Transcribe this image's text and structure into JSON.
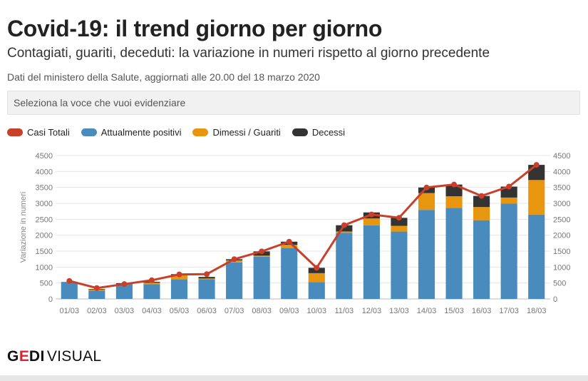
{
  "header": {
    "title": "Covid-19: il trend giorno per giorno",
    "subtitle": "Contagiati, guariti, deceduti: la variazione in numeri rispetto al giorno precedente",
    "source": "Dati del ministero della Salute, aggiornati alle 20.00 del 18 marzo 2020"
  },
  "selector": {
    "placeholder": "Seleziona la voce che vuoi evidenziare"
  },
  "legend": [
    {
      "label": "Casi Totali",
      "color": "#c9402a"
    },
    {
      "label": "Attualmente positivi",
      "color": "#4a8bbd"
    },
    {
      "label": "Dimessi / Guariti",
      "color": "#e8960f"
    },
    {
      "label": "Decessi",
      "color": "#333333"
    }
  ],
  "logo": {
    "brand_g": "G",
    "brand_e": "E",
    "brand_di": "DI",
    "visual": "VISUAL"
  },
  "chart_data": {
    "type": "bar",
    "stacked": true,
    "categories": [
      "01/03",
      "02/03",
      "03/03",
      "04/03",
      "05/03",
      "06/03",
      "07/03",
      "08/03",
      "09/03",
      "10/03",
      "11/03",
      "12/03",
      "13/03",
      "14/03",
      "15/03",
      "16/03",
      "17/03",
      "18/03"
    ],
    "series": [
      {
        "name": "Attualmente positivi",
        "color": "#4a8bbd",
        "values": [
          528,
          258,
          466,
          460,
          620,
          620,
          1145,
          1326,
          1598,
          529,
          2076,
          2313,
          2114,
          2795,
          2853,
          2470,
          2989,
          2648
        ]
      },
      {
        "name": "Dimessi / Guariti",
        "color": "#e8960f",
        "values": [
          0,
          37,
          0,
          50,
          117,
          22,
          66,
          33,
          102,
          280,
          41,
          213,
          181,
          527,
          369,
          414,
          192,
          1084
        ]
      },
      {
        "name": "Decessi",
        "color": "#333333",
        "values": [
          5,
          18,
          27,
          28,
          41,
          49,
          36,
          133,
          97,
          168,
          196,
          189,
          250,
          175,
          368,
          349,
          345,
          475
        ]
      }
    ],
    "line": {
      "name": "Casi Totali",
      "color": "#c9402a",
      "values": [
        566,
        342,
        466,
        587,
        769,
        778,
        1247,
        1492,
        1797,
        977,
        2313,
        2651,
        2547,
        3497,
        3590,
        3233,
        3526,
        4207
      ]
    },
    "ylabel": "Variazione in numeri",
    "ylim": [
      0,
      4500
    ],
    "yticks": [
      0,
      500,
      1000,
      1500,
      2000,
      2500,
      3000,
      3500,
      4000,
      4500
    ],
    "grid": true,
    "y_axis_both_sides": true
  }
}
